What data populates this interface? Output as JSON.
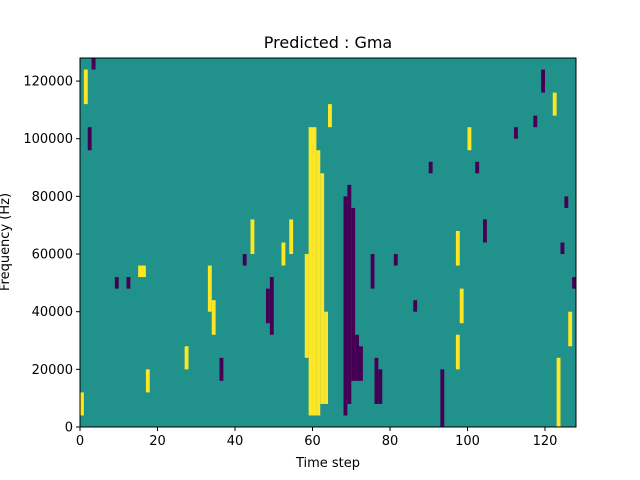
{
  "chart_data": {
    "type": "heatmap",
    "title": "Predicted : Gma",
    "xlabel": "Time step",
    "ylabel": "Frequency (Hz)",
    "xlim": [
      0,
      128
    ],
    "ylim": [
      0,
      128000
    ],
    "xticks": [
      0,
      20,
      40,
      60,
      80,
      100,
      120
    ],
    "xtick_labels": [
      "0",
      "20",
      "40",
      "60",
      "80",
      "100",
      "120"
    ],
    "yticks": [
      0,
      20000,
      40000,
      60000,
      80000,
      100000,
      120000
    ],
    "ytick_labels": [
      "0",
      "20000",
      "40000",
      "60000",
      "80000",
      "100000",
      "120000"
    ],
    "grid": false,
    "colormap": "viridis",
    "colors": {
      "background": "#21918c",
      "high": "#fde725",
      "low": "#440154"
    },
    "background_value": 0,
    "cell_height_hz": 4000,
    "cells": [
      {
        "x": 60,
        "y0": 4000,
        "y1": 104000,
        "value": 1
      },
      {
        "x": 61,
        "y0": 4000,
        "y1": 104000,
        "value": 1
      },
      {
        "x": 62,
        "y0": 4000,
        "y1": 96000,
        "value": 1
      },
      {
        "x": 63,
        "y0": 8000,
        "y1": 88000,
        "value": 1
      },
      {
        "x": 59,
        "y0": 24000,
        "y1": 60000,
        "value": 1
      },
      {
        "x": 64,
        "y0": 8000,
        "y1": 40000,
        "value": 1
      },
      {
        "x": 69,
        "y0": 4000,
        "y1": 80000,
        "value": -1
      },
      {
        "x": 70,
        "y0": 8000,
        "y1": 84000,
        "value": -1
      },
      {
        "x": 71,
        "y0": 16000,
        "y1": 76000,
        "value": -1
      },
      {
        "x": 72,
        "y0": 16000,
        "y1": 32000,
        "value": -1
      },
      {
        "x": 73,
        "y0": 16000,
        "y1": 28000,
        "value": -1
      },
      {
        "x": 49,
        "y0": 36000,
        "y1": 48000,
        "value": -1
      },
      {
        "x": 50,
        "y0": 32000,
        "y1": 52000,
        "value": -1
      },
      {
        "x": 76,
        "y0": 48000,
        "y1": 60000,
        "value": -1
      },
      {
        "x": 77,
        "y0": 8000,
        "y1": 24000,
        "value": -1
      },
      {
        "x": 78,
        "y0": 8000,
        "y1": 20000,
        "value": -1
      },
      {
        "x": 65,
        "y0": 104000,
        "y1": 112000,
        "value": 1
      },
      {
        "x": 98,
        "y0": 20000,
        "y1": 32000,
        "value": 1
      },
      {
        "x": 98,
        "y0": 56000,
        "y1": 68000,
        "value": 1
      },
      {
        "x": 99,
        "y0": 36000,
        "y1": 48000,
        "value": 1
      },
      {
        "x": 34,
        "y0": 40000,
        "y1": 56000,
        "value": 1
      },
      {
        "x": 35,
        "y0": 32000,
        "y1": 44000,
        "value": 1
      },
      {
        "x": 16,
        "y0": 52000,
        "y1": 56000,
        "value": 1
      },
      {
        "x": 17,
        "y0": 52000,
        "y1": 56000,
        "value": 1
      },
      {
        "x": 18,
        "y0": 12000,
        "y1": 20000,
        "value": 1
      },
      {
        "x": 127,
        "y0": 28000,
        "y1": 40000,
        "value": 1
      },
      {
        "x": 124,
        "y0": 0,
        "y1": 24000,
        "value": 1
      },
      {
        "x": 128,
        "y0": 48000,
        "y1": 52000,
        "value": -1
      },
      {
        "x": 1,
        "y0": 4000,
        "y1": 12000,
        "value": 1
      },
      {
        "x": 2,
        "y0": 112000,
        "y1": 124000,
        "value": 1
      },
      {
        "x": 3,
        "y0": 96000,
        "y1": 104000,
        "value": -1
      },
      {
        "x": 4,
        "y0": 124000,
        "y1": 128000,
        "value": -1
      },
      {
        "x": 10,
        "y0": 48000,
        "y1": 52000,
        "value": -1
      },
      {
        "x": 13,
        "y0": 48000,
        "y1": 52000,
        "value": -1
      },
      {
        "x": 28,
        "y0": 20000,
        "y1": 28000,
        "value": 1
      },
      {
        "x": 37,
        "y0": 16000,
        "y1": 24000,
        "value": -1
      },
      {
        "x": 43,
        "y0": 56000,
        "y1": 60000,
        "value": -1
      },
      {
        "x": 45,
        "y0": 60000,
        "y1": 72000,
        "value": 1
      },
      {
        "x": 53,
        "y0": 56000,
        "y1": 64000,
        "value": 1
      },
      {
        "x": 55,
        "y0": 60000,
        "y1": 72000,
        "value": 1
      },
      {
        "x": 82,
        "y0": 56000,
        "y1": 60000,
        "value": -1
      },
      {
        "x": 87,
        "y0": 40000,
        "y1": 44000,
        "value": -1
      },
      {
        "x": 91,
        "y0": 88000,
        "y1": 92000,
        "value": -1
      },
      {
        "x": 94,
        "y0": 0,
        "y1": 20000,
        "value": -1
      },
      {
        "x": 101,
        "y0": 96000,
        "y1": 104000,
        "value": 1
      },
      {
        "x": 103,
        "y0": 88000,
        "y1": 92000,
        "value": -1
      },
      {
        "x": 105,
        "y0": 64000,
        "y1": 72000,
        "value": -1
      },
      {
        "x": 113,
        "y0": 100000,
        "y1": 104000,
        "value": -1
      },
      {
        "x": 118,
        "y0": 104000,
        "y1": 108000,
        "value": -1
      },
      {
        "x": 120,
        "y0": 116000,
        "y1": 124000,
        "value": -1
      },
      {
        "x": 123,
        "y0": 108000,
        "y1": 116000,
        "value": 1
      },
      {
        "x": 125,
        "y0": 60000,
        "y1": 64000,
        "value": -1
      },
      {
        "x": 126,
        "y0": 76000,
        "y1": 80000,
        "value": -1
      }
    ]
  }
}
